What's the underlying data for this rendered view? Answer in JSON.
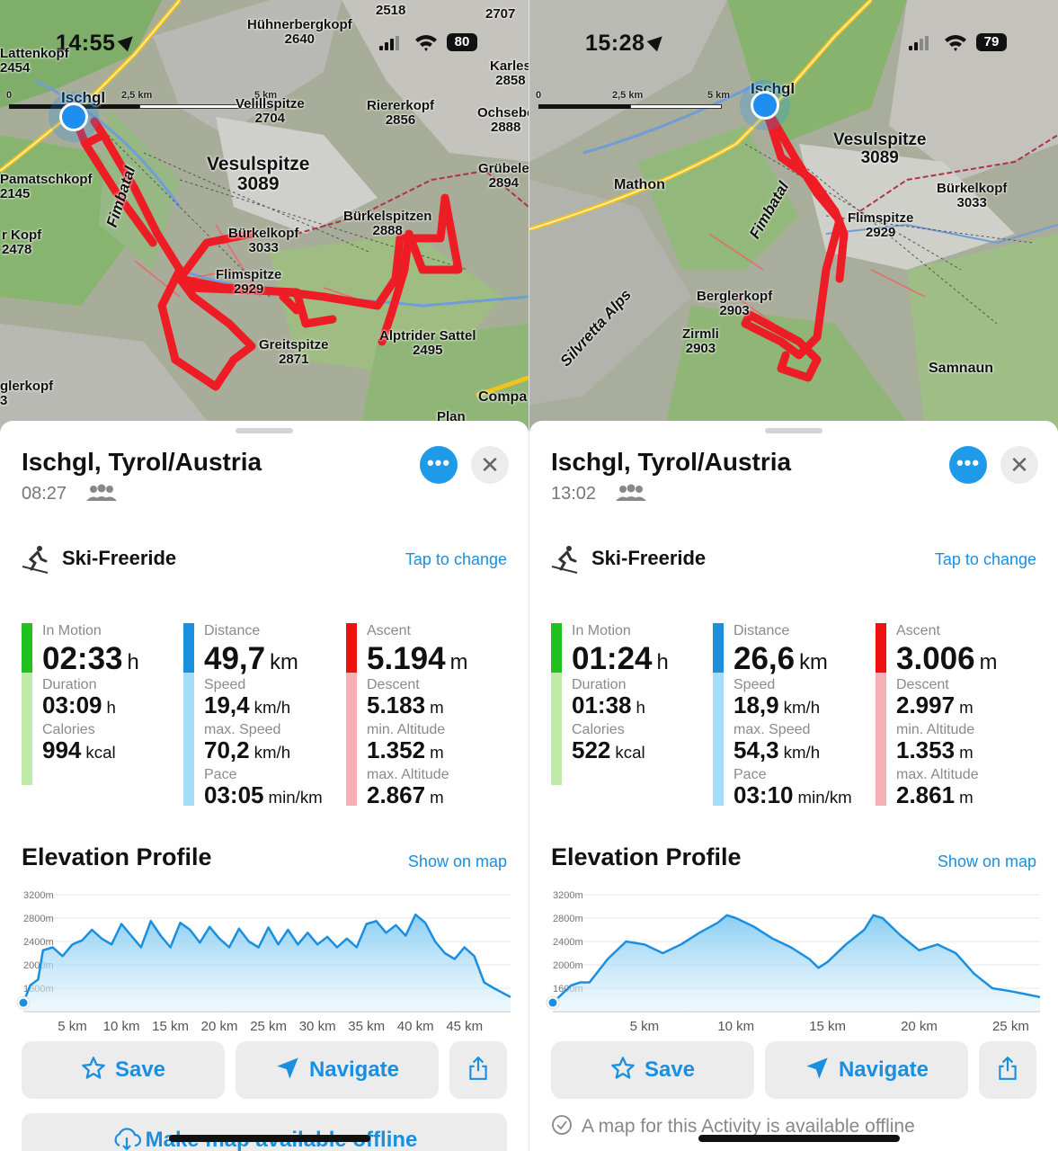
{
  "panels": [
    {
      "status": {
        "time": "14:55",
        "battery": "80"
      },
      "scale": {
        "l0": "0",
        "l1": "2,5 km",
        "l2": "5 km"
      },
      "map_labels": [
        "Hühnerbergkopf\n2640",
        "2518",
        "2707",
        "Lattenkopf\n2454",
        "Karles\n2858",
        "Ischgl",
        "Velillspitze\n2704",
        "Riererkopf\n2856",
        "Ochsebe\n2888",
        "Vesulspitze\n3089",
        "Grübele\n2894",
        "Pamatschkopf\n2145",
        "Fimbatal",
        "Bürkelspitzen\n2888",
        "Bürkelkopf\n3033",
        "r Kopf\n2478",
        "Flimspitze\n2929",
        "Alptrider Sattel\n2495",
        "Greitspitze\n2871",
        "glerkopf\n3",
        "Compa",
        "Plan"
      ],
      "title": "Ischgl, Tyrol/Austria",
      "time_start": "08:27",
      "activity": "Ski-Freeride",
      "tap_change": "Tap to change",
      "stats": {
        "motion": {
          "label": "In Motion",
          "value": "02:33",
          "unit": "h"
        },
        "duration": {
          "label": "Duration",
          "value": "03:09",
          "unit": "h"
        },
        "calories": {
          "label": "Calories",
          "value": "994",
          "unit": "kcal"
        },
        "distance": {
          "label": "Distance",
          "value": "49,7",
          "unit": "km"
        },
        "speed": {
          "label": "Speed",
          "value": "19,4",
          "unit": "km/h"
        },
        "max_speed": {
          "label": "max. Speed",
          "value": "70,2",
          "unit": "km/h"
        },
        "pace": {
          "label": "Pace",
          "value": "03:05",
          "unit": "min/km"
        },
        "ascent": {
          "label": "Ascent",
          "value": "5.194",
          "unit": "m"
        },
        "descent": {
          "label": "Descent",
          "value": "5.183",
          "unit": "m"
        },
        "min_alt": {
          "label": "min. Altitude",
          "value": "1.352",
          "unit": "m"
        },
        "max_alt": {
          "label": "max. Altitude",
          "value": "2.867",
          "unit": "m"
        }
      },
      "elevation_title": "Elevation Profile",
      "show_on_map": "Show on map",
      "save": "Save",
      "navigate": "Navigate",
      "offline_action": "Make map available offline"
    },
    {
      "status": {
        "time": "15:28",
        "battery": "79"
      },
      "scale": {
        "l0": "0",
        "l1": "2,5 km",
        "l2": "5 km"
      },
      "map_labels": [
        "Ischgl",
        "Vesulspitze\n3089",
        "Mathon",
        "Bürkelkopf\n3033",
        "Fimbatal",
        "Flimspitze\n2929",
        "Berglerkopf\n2903",
        "Zirmli\n2903",
        "Silvretta Alps",
        "Samnaun"
      ],
      "title": "Ischgl, Tyrol/Austria",
      "time_start": "13:02",
      "activity": "Ski-Freeride",
      "tap_change": "Tap to change",
      "stats": {
        "motion": {
          "label": "In Motion",
          "value": "01:24",
          "unit": "h"
        },
        "duration": {
          "label": "Duration",
          "value": "01:38",
          "unit": "h"
        },
        "calories": {
          "label": "Calories",
          "value": "522",
          "unit": "kcal"
        },
        "distance": {
          "label": "Distance",
          "value": "26,6",
          "unit": "km"
        },
        "speed": {
          "label": "Speed",
          "value": "18,9",
          "unit": "km/h"
        },
        "max_speed": {
          "label": "max. Speed",
          "value": "54,3",
          "unit": "km/h"
        },
        "pace": {
          "label": "Pace",
          "value": "03:10",
          "unit": "min/km"
        },
        "ascent": {
          "label": "Ascent",
          "value": "3.006",
          "unit": "m"
        },
        "descent": {
          "label": "Descent",
          "value": "2.997",
          "unit": "m"
        },
        "min_alt": {
          "label": "min. Altitude",
          "value": "1.353",
          "unit": "m"
        },
        "max_alt": {
          "label": "max. Altitude",
          "value": "2.861",
          "unit": "m"
        }
      },
      "elevation_title": "Elevation Profile",
      "show_on_map": "Show on map",
      "save": "Save",
      "navigate": "Navigate",
      "offline_note": "A map for this Activity is available offline"
    }
  ],
  "colors": {
    "accent": "#1a8fe0",
    "green": "#1fc21f",
    "green_light": "#bfeaa8",
    "blue": "#1a8fe0",
    "blue_light": "#a6dcf7",
    "red": "#ef1010",
    "red_light": "#f7b0b6",
    "track": "#ee1c25"
  },
  "icons": [
    "location-arrow-icon",
    "signal-icon",
    "wifi-icon",
    "battery-icon",
    "more-icon",
    "close-icon",
    "skier-icon",
    "group-icon",
    "star-icon",
    "navigate-arrow-icon",
    "share-icon",
    "cloud-download-icon",
    "check-circle-icon"
  ],
  "chart_data": [
    {
      "type": "area",
      "title": "Elevation Profile",
      "xlabel": "",
      "ylabel": "",
      "x_unit": "km",
      "y_unit": "m",
      "x_ticks": [
        "5 km",
        "10 km",
        "15 km",
        "20 km",
        "25 km",
        "30 km",
        "35 km",
        "40 km",
        "45 km"
      ],
      "y_ticks": [
        "1600m",
        "2000m",
        "2400m",
        "2800m",
        "3200m"
      ],
      "xlim": [
        0,
        49.7
      ],
      "ylim": [
        1200,
        3200
      ],
      "grid": true,
      "x": [
        0,
        0.7,
        1.5,
        2,
        3,
        4,
        5,
        6,
        7,
        8,
        9,
        10,
        11,
        12,
        13,
        14,
        15,
        16,
        17,
        18,
        19,
        20,
        21,
        22,
        23,
        24,
        25,
        26,
        27,
        28,
        29,
        30,
        31,
        32,
        33,
        34,
        35,
        36,
        37,
        38,
        39,
        40,
        41,
        42,
        43,
        44,
        45,
        46,
        47,
        48,
        49.7
      ],
      "y": [
        1352,
        1650,
        1750,
        2250,
        2300,
        2150,
        2350,
        2420,
        2600,
        2450,
        2350,
        2700,
        2500,
        2300,
        2750,
        2500,
        2300,
        2720,
        2600,
        2380,
        2650,
        2450,
        2300,
        2620,
        2400,
        2300,
        2640,
        2350,
        2600,
        2350,
        2550,
        2350,
        2480,
        2300,
        2450,
        2300,
        2700,
        2750,
        2550,
        2680,
        2500,
        2860,
        2720,
        2400,
        2200,
        2100,
        2300,
        2150,
        1700,
        1600,
        1450
      ]
    },
    {
      "type": "area",
      "title": "Elevation Profile",
      "xlabel": "",
      "ylabel": "",
      "x_unit": "km",
      "y_unit": "m",
      "x_ticks": [
        "5 km",
        "10 km",
        "15 km",
        "20 km",
        "25 km"
      ],
      "y_ticks": [
        "1600m",
        "2000m",
        "2400m",
        "2800m",
        "3200m"
      ],
      "xlim": [
        0,
        26.6
      ],
      "ylim": [
        1200,
        3200
      ],
      "grid": true,
      "x": [
        0,
        1,
        1.5,
        2,
        3,
        4,
        5,
        6,
        7,
        8,
        9,
        9.5,
        10,
        11,
        12,
        13,
        14,
        14.5,
        15,
        16,
        17,
        17.5,
        18,
        19,
        20,
        21,
        22,
        23,
        24,
        25,
        26.6
      ],
      "y": [
        1353,
        1650,
        1700,
        1700,
        2100,
        2400,
        2350,
        2200,
        2350,
        2550,
        2720,
        2850,
        2800,
        2650,
        2450,
        2300,
        2100,
        1950,
        2050,
        2350,
        2600,
        2850,
        2800,
        2500,
        2250,
        2350,
        2200,
        1850,
        1600,
        1550,
        1450
      ]
    }
  ]
}
